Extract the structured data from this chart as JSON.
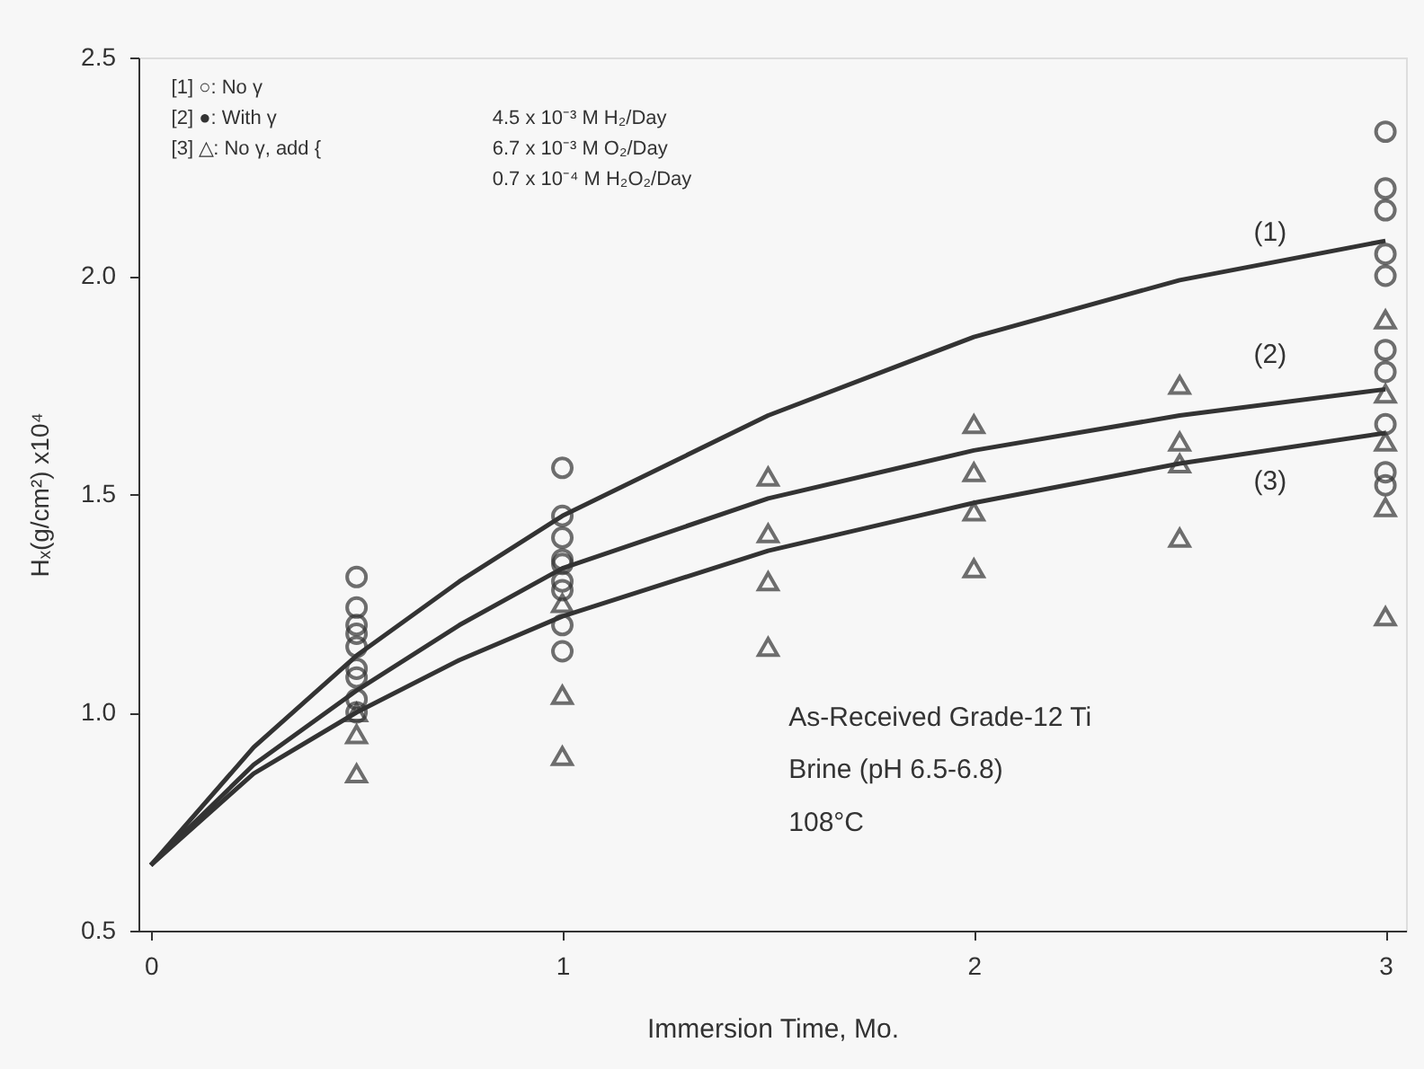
{
  "chart_data": {
    "type": "scatter",
    "xlabel": "Immersion Time, Mo.",
    "ylabel": "Hₓ(g/cm²) x10⁴",
    "xlim": [
      -0.03,
      3.05
    ],
    "xticks": [
      0,
      1,
      2,
      3
    ],
    "ylim": [
      0.5,
      2.5
    ],
    "yticks": [
      0.5,
      {
        "value": 1.0,
        "label": "1.0"
      },
      1.5,
      {
        "value": 2.0,
        "label": "2.0"
      },
      2.5
    ],
    "grid": false,
    "annotations": [
      "[1] ○: No γ",
      "[2] ●: With γ",
      "[3] △: No γ, add {",
      "4.5 x 10⁻³ M H₂/Day",
      "6.7 x 10⁻³ M O₂/Day",
      "0.7 x 10⁻⁴ M H₂O₂/Day",
      "As-Received Grade-12 Ti",
      "Brine (pH 6.5-6.8)",
      "108°C",
      "(1)",
      "(2)",
      "(3)"
    ],
    "series": [
      {
        "marker": "circle",
        "color": "#333333",
        "x": [
          0.5,
          0.5,
          0.5,
          0.5,
          0.5,
          1,
          1,
          1,
          1,
          1,
          3,
          3,
          3,
          3,
          3
        ],
        "values": [
          1.31,
          1.2,
          1.15,
          1.1,
          1.03,
          1.56,
          1.45,
          1.4,
          1.35,
          1.3,
          2.33,
          2.2,
          2.15,
          2.05,
          2.0
        ]
      },
      {
        "marker": "circle",
        "color": "#333333",
        "x": [
          0.5,
          0.5,
          0.5,
          0.5,
          1,
          1,
          1,
          1,
          3,
          3,
          3,
          3,
          3
        ],
        "values": [
          1.24,
          1.18,
          1.08,
          1.0,
          1.34,
          1.28,
          1.2,
          1.14,
          1.83,
          1.78,
          1.66,
          1.55,
          1.52
        ]
      },
      {
        "marker": "triangle",
        "color": "#333333",
        "x": [
          0.5,
          0.5,
          0.5,
          1,
          1,
          1,
          1.5,
          1.5,
          1.5,
          1.5,
          2,
          2,
          2,
          2,
          2.5,
          2.5,
          2.5,
          2.5,
          3,
          3,
          3,
          3,
          3
        ],
        "values": [
          1.0,
          0.95,
          0.86,
          1.25,
          1.04,
          0.9,
          1.54,
          1.41,
          1.3,
          1.15,
          1.66,
          1.55,
          1.46,
          1.33,
          1.75,
          1.62,
          1.57,
          1.4,
          1.9,
          1.73,
          1.62,
          1.47,
          1.22
        ]
      },
      {
        "type": "line",
        "color": "#333333",
        "x": [
          0,
          0.25,
          0.5,
          0.75,
          1,
          1.5,
          2,
          2.5,
          3
        ],
        "values": [
          0.65,
          0.92,
          1.13,
          1.3,
          1.45,
          1.68,
          1.86,
          1.99,
          2.08
        ]
      },
      {
        "type": "line",
        "color": "#333333",
        "x": [
          0,
          0.25,
          0.5,
          0.75,
          1,
          1.5,
          2,
          2.5,
          3
        ],
        "values": [
          0.65,
          0.88,
          1.05,
          1.2,
          1.33,
          1.49,
          1.6,
          1.68,
          1.74
        ]
      },
      {
        "type": "line",
        "color": "#333333",
        "x": [
          0,
          0.25,
          0.5,
          0.75,
          1,
          1.5,
          2,
          2.5,
          3
        ],
        "values": [
          0.65,
          0.86,
          1.0,
          1.12,
          1.22,
          1.37,
          1.48,
          1.57,
          1.64
        ]
      }
    ]
  }
}
